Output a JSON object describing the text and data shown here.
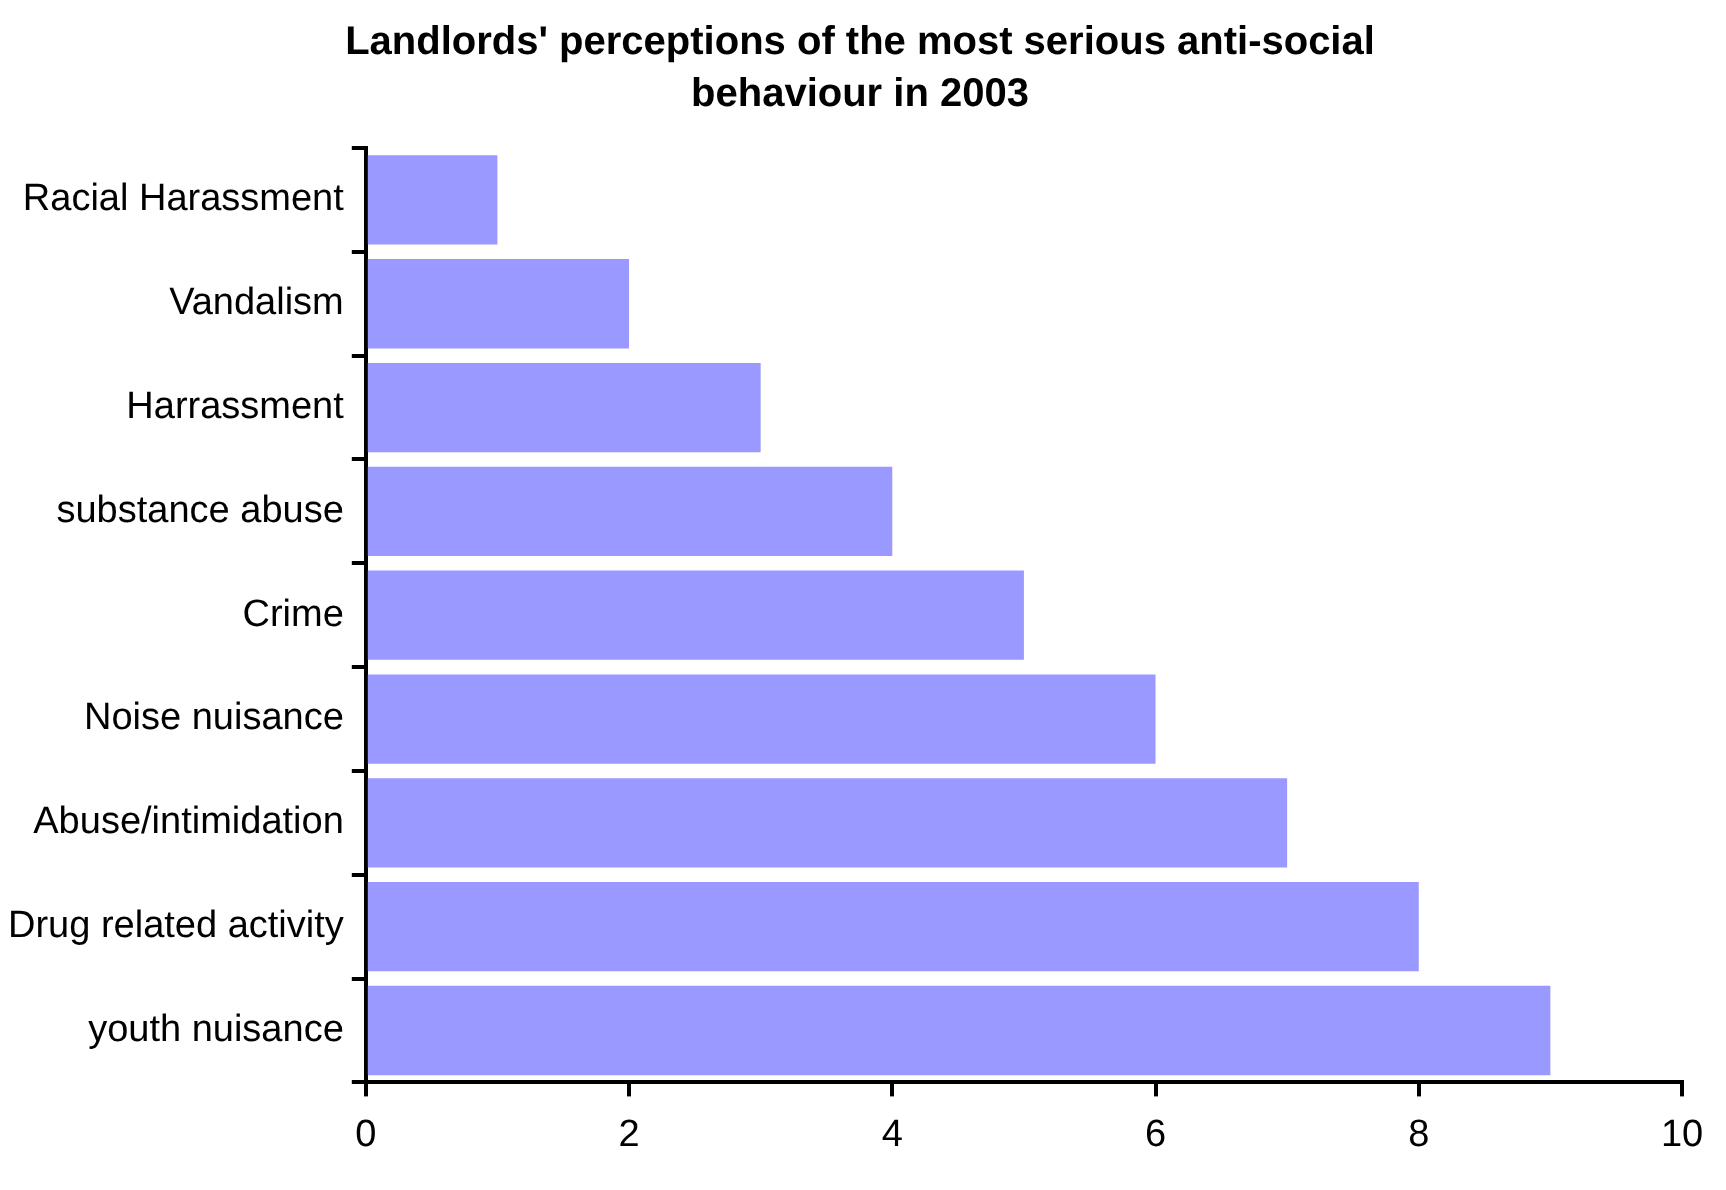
{
  "chart_data": {
    "type": "bar",
    "orientation": "horizontal",
    "title": "Landlords' perceptions of the most serious anti-social behaviour in 2003",
    "categories": [
      "Racial Harassment",
      "Vandalism",
      "Harrassment",
      "substance abuse",
      "Crime",
      "Noise nuisance",
      "Abuse/intimidation",
      "Drug related activity",
      "youth nuisance"
    ],
    "values": [
      1,
      2,
      3,
      4,
      5,
      6,
      7,
      8,
      9
    ],
    "color": "#9999ff",
    "xlim": [
      0,
      10
    ],
    "xticks": [
      0,
      2,
      4,
      6,
      8,
      10
    ],
    "grid": false,
    "legend": false
  }
}
